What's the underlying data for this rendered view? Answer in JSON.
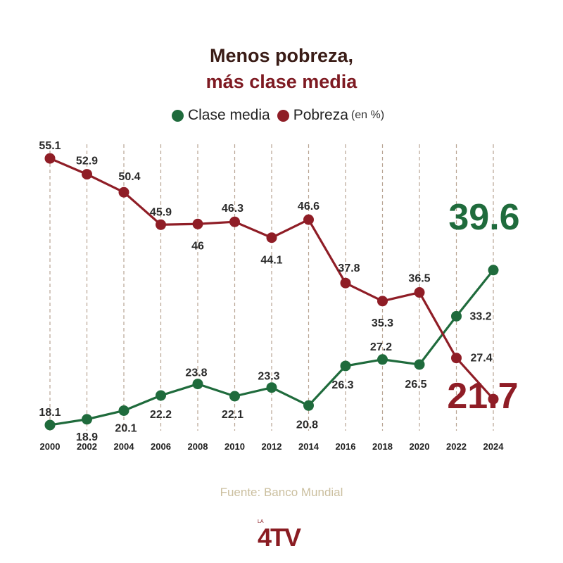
{
  "title": {
    "line1": "Menos pobreza,",
    "line2": "más clase media"
  },
  "legend": {
    "note": "(en %)"
  },
  "source": "Fuente: Banco Mundial",
  "logo": {
    "text_small": "LA",
    "text_main": "4TV"
  },
  "colors": {
    "green": "#1f6b3c",
    "red": "#8f1d26",
    "title_dark": "#3a1c16",
    "title_red": "#7e1a22",
    "grid": "#b8a493",
    "source": "#cbbf9f",
    "logo_red": "#8a1c22",
    "logo_gold": "#c9a45c"
  },
  "chart_data": {
    "type": "line",
    "categories": [
      "2000",
      "2002",
      "2004",
      "2006",
      "2008",
      "2010",
      "2012",
      "2014",
      "2016",
      "2018",
      "2020",
      "2022",
      "2024"
    ],
    "series": [
      {
        "name": "Clase media",
        "color": "#1f6b3c",
        "values": [
          18.1,
          18.9,
          20.1,
          22.2,
          23.8,
          22.1,
          23.3,
          20.8,
          26.3,
          27.2,
          26.5,
          33.2,
          39.6
        ],
        "labels": [
          "18.1",
          "18.9",
          "20.1",
          "22.2",
          "23.8",
          "22.1",
          "23.3",
          "20.8",
          "26.3",
          "27.2",
          "26.5",
          "33.2",
          "39.6"
        ]
      },
      {
        "name": "Pobreza",
        "color": "#8f1d26",
        "values": [
          55.1,
          52.9,
          50.4,
          45.9,
          46.0,
          46.3,
          44.1,
          46.6,
          37.8,
          35.3,
          36.5,
          27.4,
          21.7
        ],
        "labels": [
          "55.1",
          "52.9",
          "50.4",
          "45.9",
          "46",
          "46.3",
          "44.1",
          "46.6",
          "37.8",
          "35.3",
          "36.5",
          "27.4",
          "21.7"
        ]
      }
    ],
    "grid": "vertical dashed",
    "legend_position": "top-center"
  }
}
